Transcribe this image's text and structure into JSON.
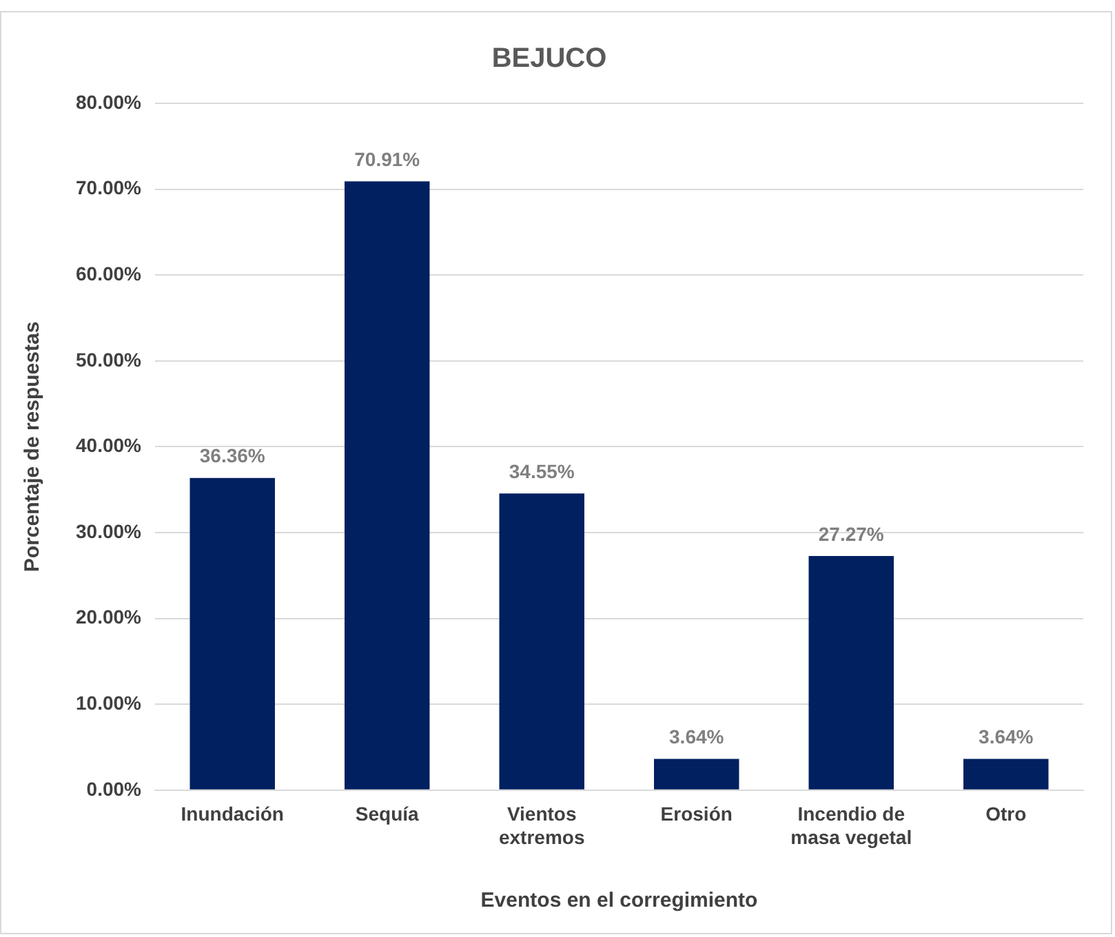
{
  "chart_data": {
    "type": "bar",
    "title": "BEJUCO",
    "xlabel": "Eventos en el corregimiento",
    "ylabel": "Porcentaje de respuestas",
    "categories": [
      "Inundación",
      "Sequía",
      "Vientos extremos",
      "Erosión",
      "Incendio de masa vegetal",
      "Otro"
    ],
    "values": [
      36.36,
      70.91,
      34.55,
      3.64,
      27.27,
      3.64
    ],
    "value_labels": [
      "36.36%",
      "70.91%",
      "34.55%",
      "3.64%",
      "27.27%",
      "3.64%"
    ],
    "color": "#002060",
    "ylim": [
      0,
      80
    ],
    "yticks": [
      {
        "value": 0,
        "label": "0.00%"
      },
      {
        "value": 10,
        "label": "10.00%"
      },
      {
        "value": 20,
        "label": "20.00%"
      },
      {
        "value": 30,
        "label": "30.00%"
      },
      {
        "value": 40,
        "label": "40.00%"
      },
      {
        "value": 50,
        "label": "50.00%"
      },
      {
        "value": 60,
        "label": "60.00%"
      },
      {
        "value": 70,
        "label": "70.00%"
      },
      {
        "value": 80,
        "label": "80.00%"
      }
    ],
    "grid": "y",
    "legend": false
  }
}
